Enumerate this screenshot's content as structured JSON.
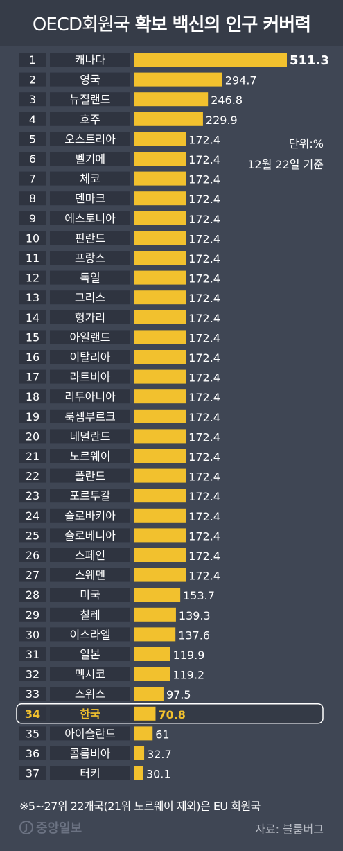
{
  "header": {
    "title_regular": "OECD회원국",
    "title_bold": "확보 백신의 인구 커버력"
  },
  "notes": {
    "unit": "단위:%",
    "date": "12월 22일 기준"
  },
  "footnote": "※5~27위 22개국(21위 노르웨이 제외)은 EU 회원국",
  "logo_text": "중앙일보",
  "source": "자료: 블룸버그",
  "colors": {
    "background": "#3f4654",
    "header": "#363c48",
    "bar": "#f2c12e",
    "highlight_text": "#f2c12e",
    "label_box": "#2f3440"
  },
  "chart_data": {
    "type": "bar",
    "orientation": "horizontal",
    "title": "OECD회원국 확보 백신의 인구 커버력",
    "unit": "%",
    "highlight_rank": 34,
    "ranks": [
      "1",
      "2",
      "3",
      "4",
      "5",
      "6",
      "7",
      "8",
      "9",
      "10",
      "11",
      "12",
      "13",
      "14",
      "15",
      "16",
      "17",
      "18",
      "19",
      "20",
      "21",
      "22",
      "23",
      "24",
      "25",
      "26",
      "27",
      "28",
      "29",
      "30",
      "31",
      "32",
      "33",
      "34",
      "35",
      "36",
      "37"
    ],
    "categories": [
      "캐나다",
      "영국",
      "뉴질랜드",
      "호주",
      "오스트리아",
      "벨기에",
      "체코",
      "덴마크",
      "에스토니아",
      "핀란드",
      "프랑스",
      "독일",
      "그리스",
      "헝가리",
      "아일랜드",
      "이탈리아",
      "라트비아",
      "리투아니아",
      "룩셈부르크",
      "네덜란드",
      "노르웨이",
      "폴란드",
      "포르투갈",
      "슬로바키아",
      "슬로베니아",
      "스페인",
      "스웨덴",
      "미국",
      "칠레",
      "이스라엘",
      "일본",
      "멕시코",
      "스위스",
      "한국",
      "아이슬란드",
      "콜롬비아",
      "터키"
    ],
    "values": [
      511.3,
      294.7,
      246.8,
      229.9,
      172.4,
      172.4,
      172.4,
      172.4,
      172.4,
      172.4,
      172.4,
      172.4,
      172.4,
      172.4,
      172.4,
      172.4,
      172.4,
      172.4,
      172.4,
      172.4,
      172.4,
      172.4,
      172.4,
      172.4,
      172.4,
      172.4,
      172.4,
      153.7,
      139.3,
      137.6,
      119.9,
      119.2,
      97.5,
      70.8,
      61,
      32.7,
      30.1
    ],
    "value_labels": [
      "511.3",
      "294.7",
      "246.8",
      "229.9",
      "172.4",
      "172.4",
      "172.4",
      "172.4",
      "172.4",
      "172.4",
      "172.4",
      "172.4",
      "172.4",
      "172.4",
      "172.4",
      "172.4",
      "172.4",
      "172.4",
      "172.4",
      "172.4",
      "172.4",
      "172.4",
      "172.4",
      "172.4",
      "172.4",
      "172.4",
      "172.4",
      "153.7",
      "139.3",
      "137.6",
      "119.9",
      "119.2",
      "97.5",
      "70.8",
      "61",
      "32.7",
      "30.1"
    ]
  }
}
